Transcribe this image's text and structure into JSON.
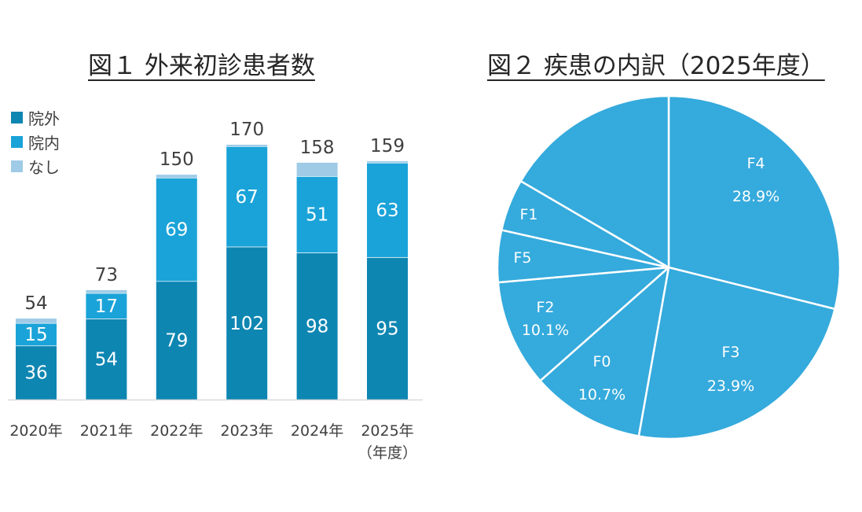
{
  "figure1": {
    "title": "図１ 外来初診患者数",
    "legend": [
      {
        "label": "院外",
        "color": "#0e86b2"
      },
      {
        "label": "院内",
        "color": "#1aa3d8"
      },
      {
        "label": "なし",
        "color": "#9fcbe7"
      }
    ],
    "year_suffix_note": "（年度）"
  },
  "figure2": {
    "title": "図２ 疾患の内訳（2025年度）"
  },
  "chart_data": [
    {
      "type": "bar",
      "stacked": true,
      "title": "図１ 外来初診患者数",
      "categories": [
        "2020年",
        "2021年",
        "2022年",
        "2023年",
        "2024年",
        "2025年"
      ],
      "x_axis_note": "（年度）",
      "series": [
        {
          "name": "院外",
          "values": [
            36,
            54,
            79,
            102,
            98,
            95
          ],
          "color": "#0e86b2"
        },
        {
          "name": "院内",
          "values": [
            15,
            17,
            69,
            67,
            51,
            63
          ],
          "color": "#1aa3d8"
        },
        {
          "name": "なし",
          "values": [
            3,
            2,
            2,
            1,
            9,
            1
          ],
          "color": "#9fcbe7"
        }
      ],
      "totals": [
        54,
        73,
        150,
        170,
        158,
        159
      ],
      "ylim": [
        0,
        170
      ],
      "legend_position": "top-left",
      "grid": false
    },
    {
      "type": "pie",
      "title": "図２ 疾患の内訳（2025年度）",
      "color": "#35aadc",
      "slices": [
        {
          "label": "F4",
          "value": 28.9,
          "value_label": "28.9%"
        },
        {
          "label": "F3",
          "value": 23.9,
          "value_label": "23.9%"
        },
        {
          "label": "F0",
          "value": 10.7,
          "value_label": "10.7%"
        },
        {
          "label": "F2",
          "value": 10.1,
          "value_label": "10.1%"
        },
        {
          "label": "F5",
          "value": 4.9,
          "value_label": ""
        },
        {
          "label": "F1",
          "value": 4.9,
          "value_label": ""
        },
        {
          "label": "",
          "value": 16.6,
          "value_label": ""
        }
      ]
    }
  ]
}
